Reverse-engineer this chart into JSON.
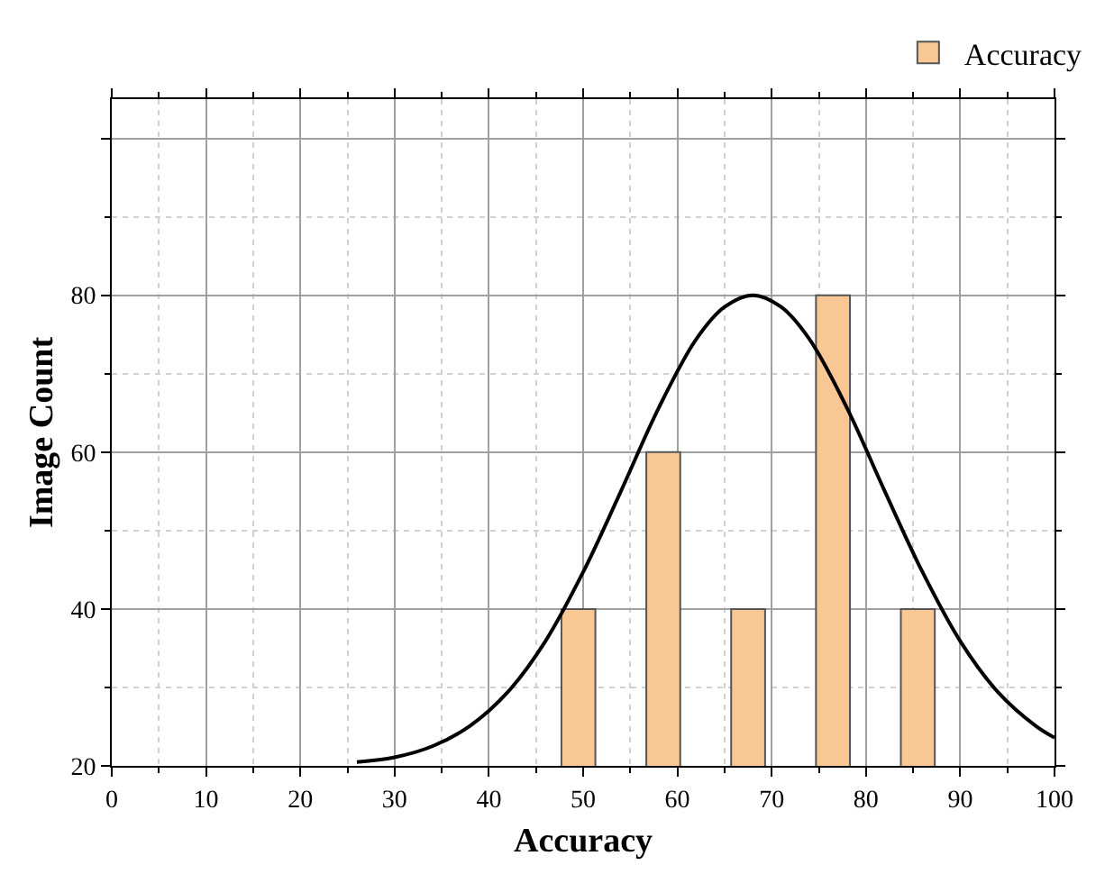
{
  "chart_data": {
    "type": "bar",
    "xlabel": "Accuracy",
    "ylabel": "Image Count",
    "x": [
      49.5,
      58.5,
      67.5,
      76.5,
      85.5
    ],
    "series": [
      {
        "name": "Accuracy",
        "color": "#f9c794",
        "values": [
          40,
          60,
          40,
          80,
          40
        ]
      },
      {
        "type": "line",
        "color": "#000000",
        "x": [
          26,
          30,
          34,
          38,
          42,
          46,
          50,
          54,
          58,
          62,
          65,
          68,
          71,
          74,
          78,
          82,
          86,
          90,
          94,
          98,
          100
        ],
        "values": [
          20.5,
          21.1,
          22.5,
          25.1,
          29.4,
          35.9,
          44.7,
          55.0,
          65.6,
          74.4,
          78.5,
          80,
          78.5,
          74.4,
          65.6,
          55.0,
          44.7,
          35.9,
          29.4,
          25.1,
          23.6
        ]
      }
    ],
    "xlim": [
      0,
      100
    ],
    "xticks": [
      0,
      10,
      20,
      30,
      40,
      50,
      60,
      70,
      80,
      90,
      100
    ],
    "ylim": [
      20,
      105
    ],
    "yticks": [
      20,
      40,
      60,
      80,
      {
        "value": 100,
        "label": null
      }
    ],
    "grid": true,
    "legend": "top right",
    "marker": "none",
    "line_style": "solid"
  }
}
